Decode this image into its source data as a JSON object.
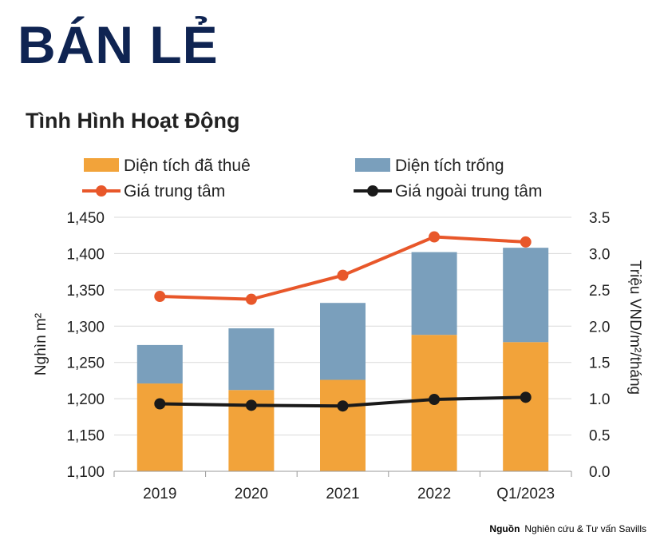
{
  "page": {
    "title": "BÁN LẺ",
    "subtitle": "Tình Hình Hoạt Động",
    "source_label": "Nguồn",
    "source_text": "Nghiên cứu & Tư vấn Savills"
  },
  "colors": {
    "occupied": "#f2a33a",
    "vacant": "#7a9fbc",
    "center_price": "#e8572a",
    "outside_price": "#1a1a1a"
  },
  "chart_data": {
    "type": "bar",
    "title": "Tình Hình Hoạt Động",
    "categories": [
      "2019",
      "2020",
      "2021",
      "2022",
      "Q1/2023"
    ],
    "ylabel": "Nghìn m²",
    "y2label": "Triệu VND/m²/tháng",
    "ylim": [
      1100,
      1450
    ],
    "y2lim": [
      0,
      3.5
    ],
    "yticks": [
      "1,100",
      "1,150",
      "1,200",
      "1,250",
      "1,300",
      "1,350",
      "1,400",
      "1,450"
    ],
    "y2ticks": [
      "0.0",
      "0.5",
      "1.0",
      "1.5",
      "2.0",
      "2.5",
      "3.0",
      "3.5"
    ],
    "grid": true,
    "legend_position": "top",
    "series": [
      {
        "name": "Diện tích đã thuê",
        "type": "stacked-bar",
        "axis": "left",
        "values": [
          1221,
          1212,
          1226,
          1288,
          1278
        ]
      },
      {
        "name": "Diện tích trống",
        "type": "stacked-bar",
        "axis": "left",
        "values": [
          53,
          85,
          106,
          114,
          130
        ]
      },
      {
        "name": "Giá trung tâm",
        "type": "line",
        "axis": "right",
        "values": [
          2.41,
          2.37,
          2.7,
          3.23,
          3.16
        ]
      },
      {
        "name": "Giá ngoài trung tâm",
        "type": "line",
        "axis": "right",
        "values": [
          0.93,
          0.91,
          0.9,
          0.99,
          1.02
        ]
      }
    ]
  }
}
